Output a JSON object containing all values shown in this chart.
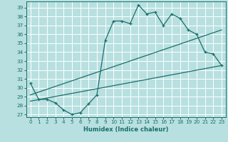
{
  "title": "",
  "xlabel": "Humidex (Indice chaleur)",
  "bg_color": "#b8e0e0",
  "grid_color": "#ffffff",
  "line_color": "#1a6e6a",
  "xlim": [
    -0.5,
    23.5
  ],
  "ylim": [
    26.7,
    39.7
  ],
  "yticks": [
    27,
    28,
    29,
    30,
    31,
    32,
    33,
    34,
    35,
    36,
    37,
    38,
    39
  ],
  "xticks": [
    0,
    1,
    2,
    3,
    4,
    5,
    6,
    7,
    8,
    9,
    10,
    11,
    12,
    13,
    14,
    15,
    16,
    17,
    18,
    19,
    20,
    21,
    22,
    23
  ],
  "line1_x": [
    0,
    1,
    2,
    3,
    4,
    5,
    6,
    7,
    8,
    9,
    10,
    11,
    12,
    13,
    14,
    15,
    16,
    17,
    18,
    19,
    20,
    21,
    22,
    23
  ],
  "line1_y": [
    30.5,
    28.7,
    28.7,
    28.3,
    27.5,
    27.0,
    27.2,
    28.2,
    29.2,
    35.3,
    37.5,
    37.5,
    37.2,
    39.3,
    38.3,
    38.5,
    37.0,
    38.3,
    37.8,
    36.5,
    36.0,
    34.0,
    33.8,
    32.5
  ],
  "line2_x": [
    0,
    23
  ],
  "line2_y": [
    28.5,
    32.5
  ],
  "line3_x": [
    0,
    23
  ],
  "line3_y": [
    29.2,
    36.5
  ],
  "xlabel_fontsize": 6.0,
  "tick_fontsize": 5.2
}
